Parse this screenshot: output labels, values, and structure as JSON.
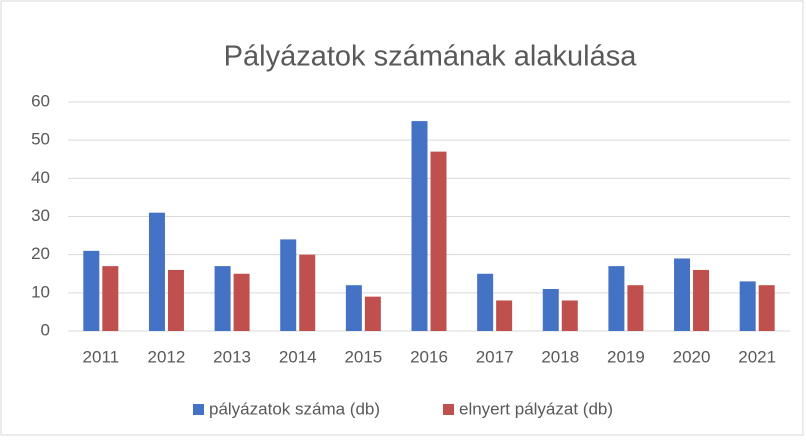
{
  "chart_data": {
    "type": "bar",
    "title": "Pályázatok számának alakulása",
    "categories": [
      "2011",
      "2012",
      "2013",
      "2014",
      "2015",
      "2016",
      "2017",
      "2018",
      "2019",
      "2020",
      "2021"
    ],
    "series": [
      {
        "name": "pályázatok száma (db)",
        "color": "#4472c4",
        "values": [
          21,
          31,
          17,
          24,
          12,
          55,
          15,
          11,
          17,
          19,
          13
        ]
      },
      {
        "name": "elnyert pályázat (db)",
        "color": "#c0504d",
        "values": [
          17,
          16,
          15,
          20,
          9,
          47,
          8,
          8,
          12,
          16,
          12
        ]
      }
    ],
    "ylim": [
      0,
      60
    ],
    "yticks": [
      0,
      10,
      20,
      30,
      40,
      50,
      60
    ],
    "grid": true,
    "legend": "bottom"
  }
}
